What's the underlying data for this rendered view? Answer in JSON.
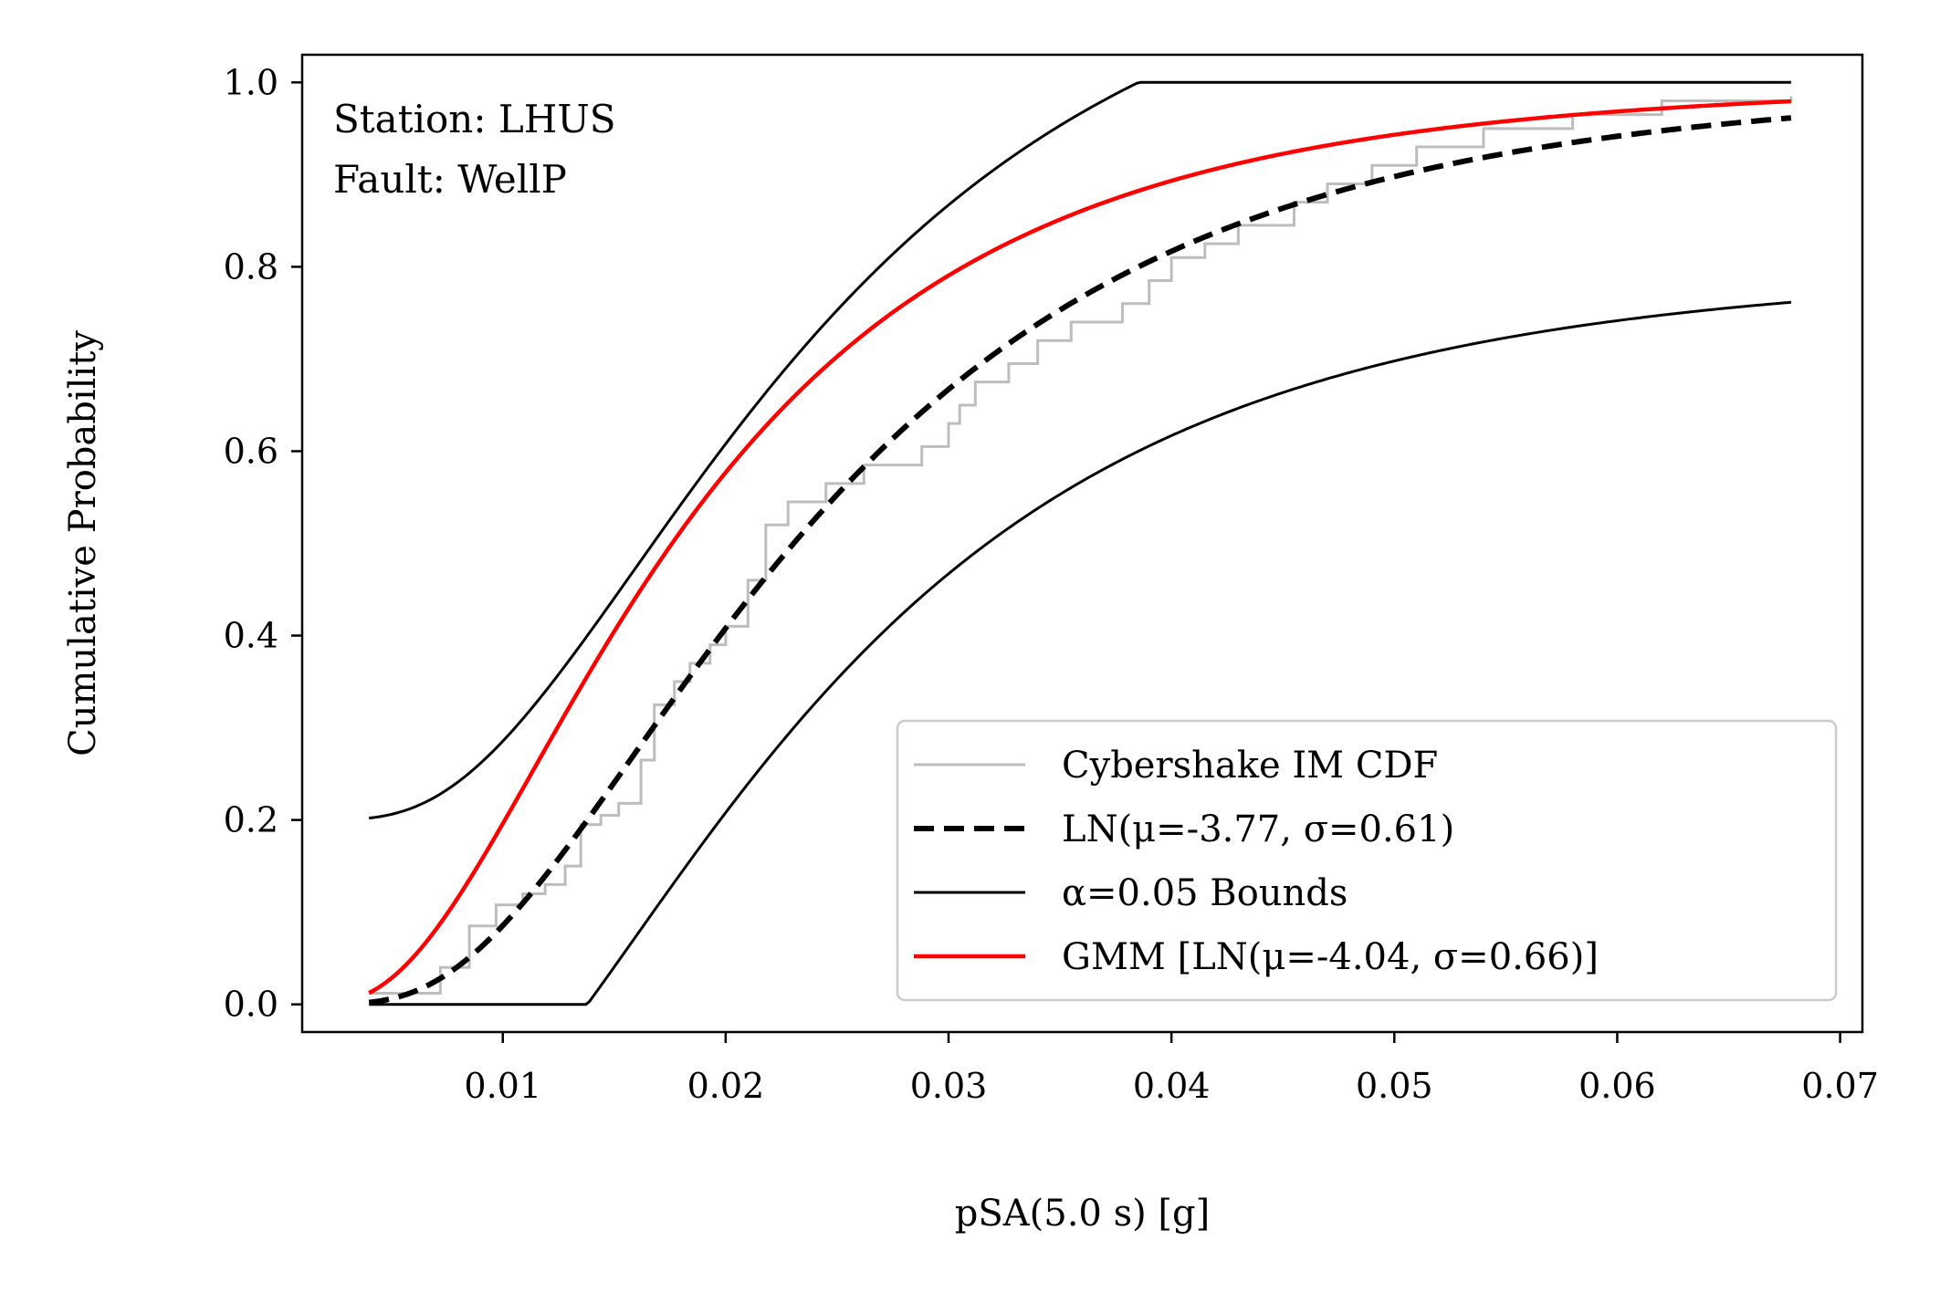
{
  "chart_data": {
    "type": "line",
    "xlabel": "pSA(5.0 s) [g]",
    "ylabel": "Cumulative Probability",
    "xlim": [
      0.001,
      0.071
    ],
    "ylim": [
      -0.03,
      1.03
    ],
    "xticks": [
      0.01,
      0.02,
      0.03,
      0.04,
      0.05,
      0.06,
      0.07
    ],
    "xtick_labels": [
      "0.01",
      "0.02",
      "0.03",
      "0.04",
      "0.05",
      "0.06",
      "0.07"
    ],
    "yticks": [
      0.0,
      0.2,
      0.4,
      0.6,
      0.8,
      1.0
    ],
    "ytick_labels": [
      "0.0",
      "0.2",
      "0.4",
      "0.6",
      "0.8",
      "1.0"
    ],
    "grid": false,
    "legend_position": "lower-right",
    "annotations": [
      "Station: LHUS",
      "Fault: WellP"
    ],
    "series": [
      {
        "name": "Cybershake IM CDF",
        "style": "step",
        "color": "#bdbdbd",
        "x": [
          0.004,
          0.0072,
          0.0085,
          0.0097,
          0.0109,
          0.0119,
          0.0128,
          0.0135,
          0.0144,
          0.0152,
          0.0162,
          0.0168,
          0.0177,
          0.0184,
          0.0193,
          0.02,
          0.021,
          0.0218,
          0.0228,
          0.0245,
          0.0262,
          0.0288,
          0.03,
          0.0305,
          0.0312,
          0.0327,
          0.034,
          0.0355,
          0.0378,
          0.039,
          0.04,
          0.0415,
          0.043,
          0.0455,
          0.047,
          0.049,
          0.051,
          0.054,
          0.058,
          0.062,
          0.0678
        ],
        "y": [
          0.012,
          0.04,
          0.085,
          0.108,
          0.12,
          0.13,
          0.15,
          0.195,
          0.205,
          0.218,
          0.265,
          0.325,
          0.35,
          0.37,
          0.39,
          0.41,
          0.46,
          0.52,
          0.545,
          0.565,
          0.585,
          0.605,
          0.63,
          0.65,
          0.675,
          0.695,
          0.72,
          0.74,
          0.76,
          0.785,
          0.81,
          0.825,
          0.845,
          0.87,
          0.89,
          0.91,
          0.93,
          0.95,
          0.965,
          0.98,
          0.985
        ]
      },
      {
        "name": "LN(μ=-3.77, σ=0.61)",
        "style": "dashed",
        "color": "#000000",
        "mu": -3.77,
        "sigma": 0.61,
        "x_range": [
          0.004,
          0.0678
        ]
      },
      {
        "name": "α=0.05 Bounds",
        "style": "solid-thin",
        "color": "#000000",
        "bounds_of": "LN(μ=-3.77, σ=0.61)",
        "offset": 0.2,
        "x_range": [
          0.004,
          0.0678
        ]
      },
      {
        "name": "GMM [LN(μ=-4.04, σ=0.66)]",
        "style": "solid",
        "color": "#ff0000",
        "mu": -4.04,
        "sigma": 0.66,
        "x_range": [
          0.004,
          0.0678
        ]
      }
    ]
  }
}
